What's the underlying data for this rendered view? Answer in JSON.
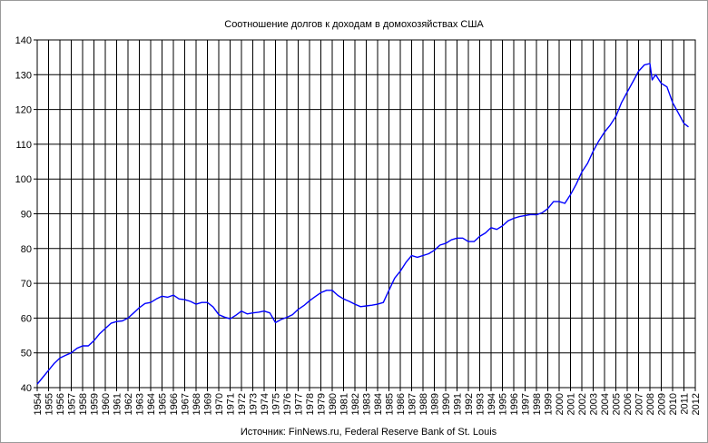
{
  "chart_data": {
    "type": "line",
    "title": "Соотношение долгов к доходам в домохозяйствах США",
    "source_note": "Источник: FinNews.ru, Federal Reserve Bank of St. Louis",
    "xlabel": "",
    "ylabel": "",
    "ylim": [
      40,
      140
    ],
    "yticks": [
      40,
      50,
      60,
      70,
      80,
      90,
      100,
      110,
      120,
      130,
      140
    ],
    "xlim": [
      1954,
      2012
    ],
    "xticks": [
      "1954",
      "1955",
      "1956",
      "1957",
      "1958",
      "1959",
      "1960",
      "1961",
      "1962",
      "1963",
      "1964",
      "1965",
      "1966",
      "1967",
      "1968",
      "1969",
      "1970",
      "1971",
      "1972",
      "1973",
      "1974",
      "1975",
      "1976",
      "1977",
      "1978",
      "1979",
      "1980",
      "1981",
      "1982",
      "1983",
      "1984",
      "1985",
      "1986",
      "1987",
      "1988",
      "1989",
      "1990",
      "1991",
      "1992",
      "1993",
      "1994",
      "1995",
      "1996",
      "1997",
      "1998",
      "1999",
      "2000",
      "2001",
      "2002",
      "2003",
      "2004",
      "2005",
      "2006",
      "2007",
      "2008",
      "2009",
      "2010",
      "2011",
      "2012"
    ],
    "grid": true,
    "legend": "none",
    "line_color": "#0000ff",
    "series": [
      {
        "x": [
          1954.0,
          1954.5,
          1955.0,
          1955.5,
          1956.0,
          1956.5,
          1957.0,
          1957.5,
          1958.0,
          1958.5,
          1959.0,
          1959.5,
          1960.0,
          1960.5,
          1961.0,
          1961.5,
          1962.0,
          1962.5,
          1963.0,
          1963.5,
          1964.0,
          1964.5,
          1965.0,
          1965.5,
          1966.0,
          1966.5,
          1967.0,
          1967.5,
          1968.0,
          1968.5,
          1969.0,
          1969.5,
          1970.0,
          1970.5,
          1971.0,
          1971.5,
          1972.0,
          1972.5,
          1973.0,
          1973.5,
          1974.0,
          1974.5,
          1975.0,
          1975.5,
          1976.0,
          1976.5,
          1977.0,
          1977.5,
          1978.0,
          1978.5,
          1979.0,
          1979.5,
          1980.0,
          1980.5,
          1981.0,
          1981.5,
          1982.0,
          1982.5,
          1983.0,
          1983.5,
          1984.0,
          1984.5,
          1985.0,
          1985.5,
          1986.0,
          1986.5,
          1987.0,
          1987.5,
          1988.0,
          1988.5,
          1989.0,
          1989.5,
          1990.0,
          1990.5,
          1991.0,
          1991.5,
          1992.0,
          1992.5,
          1993.0,
          1993.5,
          1994.0,
          1994.5,
          1995.0,
          1995.5,
          1996.0,
          1996.5,
          1997.0,
          1997.5,
          1998.0,
          1998.5,
          1999.0,
          1999.5,
          2000.0,
          2000.5,
          2001.0,
          2001.5,
          2002.0,
          2002.5,
          2003.0,
          2003.5,
          2004.0,
          2004.5,
          2005.0,
          2005.5,
          2006.0,
          2006.5,
          2007.0,
          2007.5,
          2008.0,
          2008.2,
          2008.5,
          2009.0,
          2009.5,
          2010.0,
          2010.5,
          2011.0,
          2011.4
        ],
        "values": [
          41,
          43,
          45,
          47,
          48.5,
          49.3,
          50,
          51.3,
          52,
          52,
          53.5,
          55.5,
          57,
          58.5,
          59,
          59.2,
          60,
          61.5,
          63,
          64.2,
          64.5,
          65.5,
          66.3,
          66,
          66.6,
          65.5,
          65.3,
          64.8,
          64,
          64.5,
          64.5,
          63.2,
          61,
          60.3,
          59.8,
          60.8,
          62,
          61.2,
          61.5,
          61.7,
          62,
          61.5,
          58.7,
          59.6,
          60.2,
          61,
          62.5,
          63.6,
          65,
          66.2,
          67.3,
          68,
          68,
          66.5,
          65.5,
          64.8,
          64,
          63.3,
          63.5,
          63.7,
          64,
          64.5,
          68,
          71.5,
          73.5,
          76,
          78,
          77.5,
          78,
          78.5,
          79.5,
          81,
          81.5,
          82.5,
          83,
          83,
          82,
          82,
          83.5,
          84.5,
          86,
          85.5,
          86.5,
          88,
          88.7,
          89.2,
          89.5,
          89.8,
          89.7,
          90.3,
          91.5,
          93.5,
          93.5,
          93,
          95.5,
          98.5,
          102,
          104.5,
          108,
          111,
          113.5,
          115.5,
          118,
          122,
          125,
          128,
          131,
          132.8,
          133.2,
          128.5,
          130,
          127.5,
          126.5,
          122,
          119,
          116,
          115
        ]
      }
    ]
  }
}
